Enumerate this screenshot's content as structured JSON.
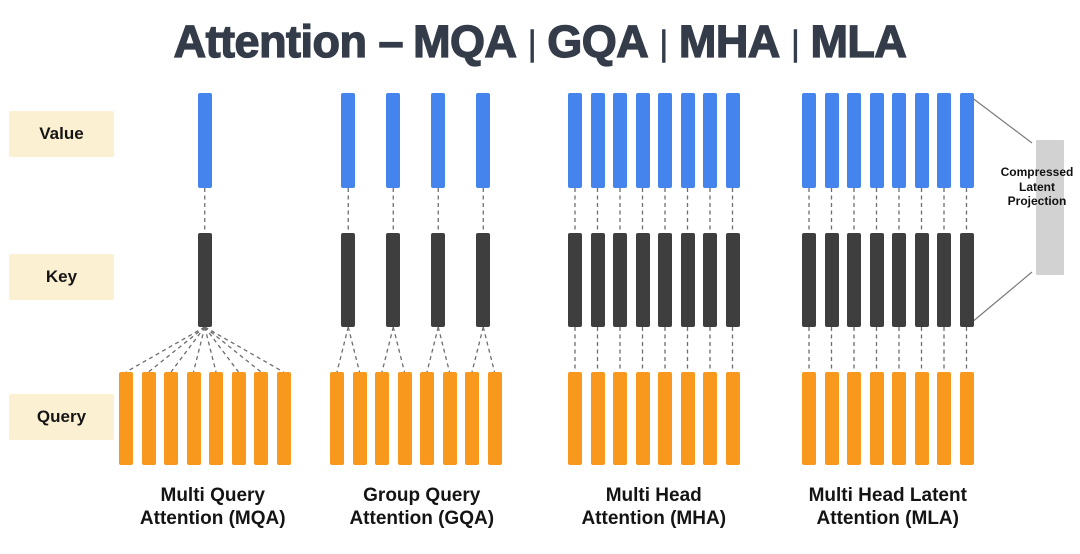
{
  "title": {
    "prefix": "Attention –",
    "acronyms": [
      "MQA",
      "GQA",
      "MHA",
      "MLA"
    ],
    "separator": "|"
  },
  "row_labels": {
    "value": "Value",
    "key": "Key",
    "query": "Query"
  },
  "groups": [
    {
      "id": "mqa",
      "caption_line1": "Multi Query",
      "caption_line2": "Attention (MQA)",
      "value_heads": 1,
      "key_heads": 1,
      "query_heads": 8
    },
    {
      "id": "gqa",
      "caption_line1": "Group Query",
      "caption_line2": "Attention (GQA)",
      "value_heads": 4,
      "key_heads": 4,
      "query_heads": 8
    },
    {
      "id": "mha",
      "caption_line1": "Multi Head",
      "caption_line2": "Attention (MHA)",
      "value_heads": 8,
      "key_heads": 8,
      "query_heads": 8
    },
    {
      "id": "mla",
      "caption_line1": "Multi Head Latent",
      "caption_line2": "Attention (MLA)",
      "value_heads": 8,
      "key_heads": 8,
      "query_heads": 8
    }
  ],
  "annotation": {
    "label": "Compressed Latent Projection",
    "attached_to": "MLA"
  },
  "colors": {
    "value_bar": "#4584EC",
    "key_bar": "#3E3E3E",
    "query_bar": "#F8981D",
    "row_label_bg": "#FCF0D2",
    "latent_box": "#D2D2D2",
    "title": "#343C4A",
    "dashed_connector": "#6E6E6E",
    "solid_connector": "#7B7B7B"
  }
}
